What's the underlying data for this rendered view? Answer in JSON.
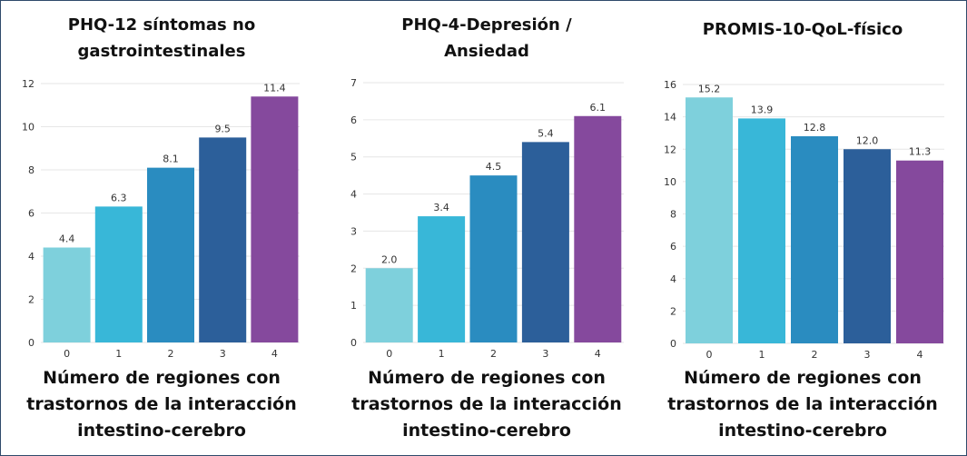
{
  "chart_data": [
    {
      "type": "bar",
      "title_lines": [
        "PHQ-12 síntomas no",
        "gastrointestinales"
      ],
      "categories": [
        "0",
        "1",
        "2",
        "3",
        "4"
      ],
      "values": [
        4.4,
        6.3,
        8.1,
        9.5,
        11.4
      ],
      "value_labels": [
        "4.4",
        "6.3",
        "8.1",
        "9.5",
        "11.4"
      ],
      "ylim": [
        0,
        12
      ],
      "yticks": [
        "0",
        "2",
        "4",
        "6",
        "8",
        "10",
        "12"
      ],
      "xlabel_lines": [
        "Número de regiones con",
        "trastornos de la interacción",
        "intestino-cerebro"
      ],
      "grid": true
    },
    {
      "type": "bar",
      "title_lines": [
        "PHQ-4-Depresión /",
        "Ansiedad"
      ],
      "categories": [
        "0",
        "1",
        "2",
        "3",
        "4"
      ],
      "values": [
        2.0,
        3.4,
        4.5,
        5.4,
        6.1
      ],
      "value_labels": [
        "2.0",
        "3.4",
        "4.5",
        "5.4",
        "6.1"
      ],
      "ylim": [
        0,
        7
      ],
      "yticks": [
        "0",
        "1",
        "2",
        "3",
        "4",
        "5",
        "6",
        "7"
      ],
      "xlabel_lines": [
        "Número de regiones con",
        "trastornos de la interacción",
        "intestino-cerebro"
      ],
      "grid": true
    },
    {
      "type": "bar",
      "title_lines": [
        "PROMIS-10-QoL-físico"
      ],
      "categories": [
        "0",
        "1",
        "2",
        "3",
        "4"
      ],
      "values": [
        15.2,
        13.9,
        12.8,
        12.0,
        11.3
      ],
      "value_labels": [
        "15.2",
        "13.9",
        "12.8",
        "12.0",
        "11.3"
      ],
      "ylim": [
        0,
        16
      ],
      "yticks": [
        "0",
        "2",
        "4",
        "6",
        "8",
        "10",
        "12",
        "14",
        "16"
      ],
      "xlabel_lines": [
        "Número de regiones con",
        "trastornos de la interacción",
        "intestino-cerebro"
      ],
      "grid": true
    }
  ],
  "colors": {
    "bars": [
      "#7ed0dc",
      "#38b7d8",
      "#2a8cc0",
      "#2c5f9a",
      "#85499d"
    ],
    "grid": "#e6e6e6",
    "border": "#2f4a6b"
  }
}
